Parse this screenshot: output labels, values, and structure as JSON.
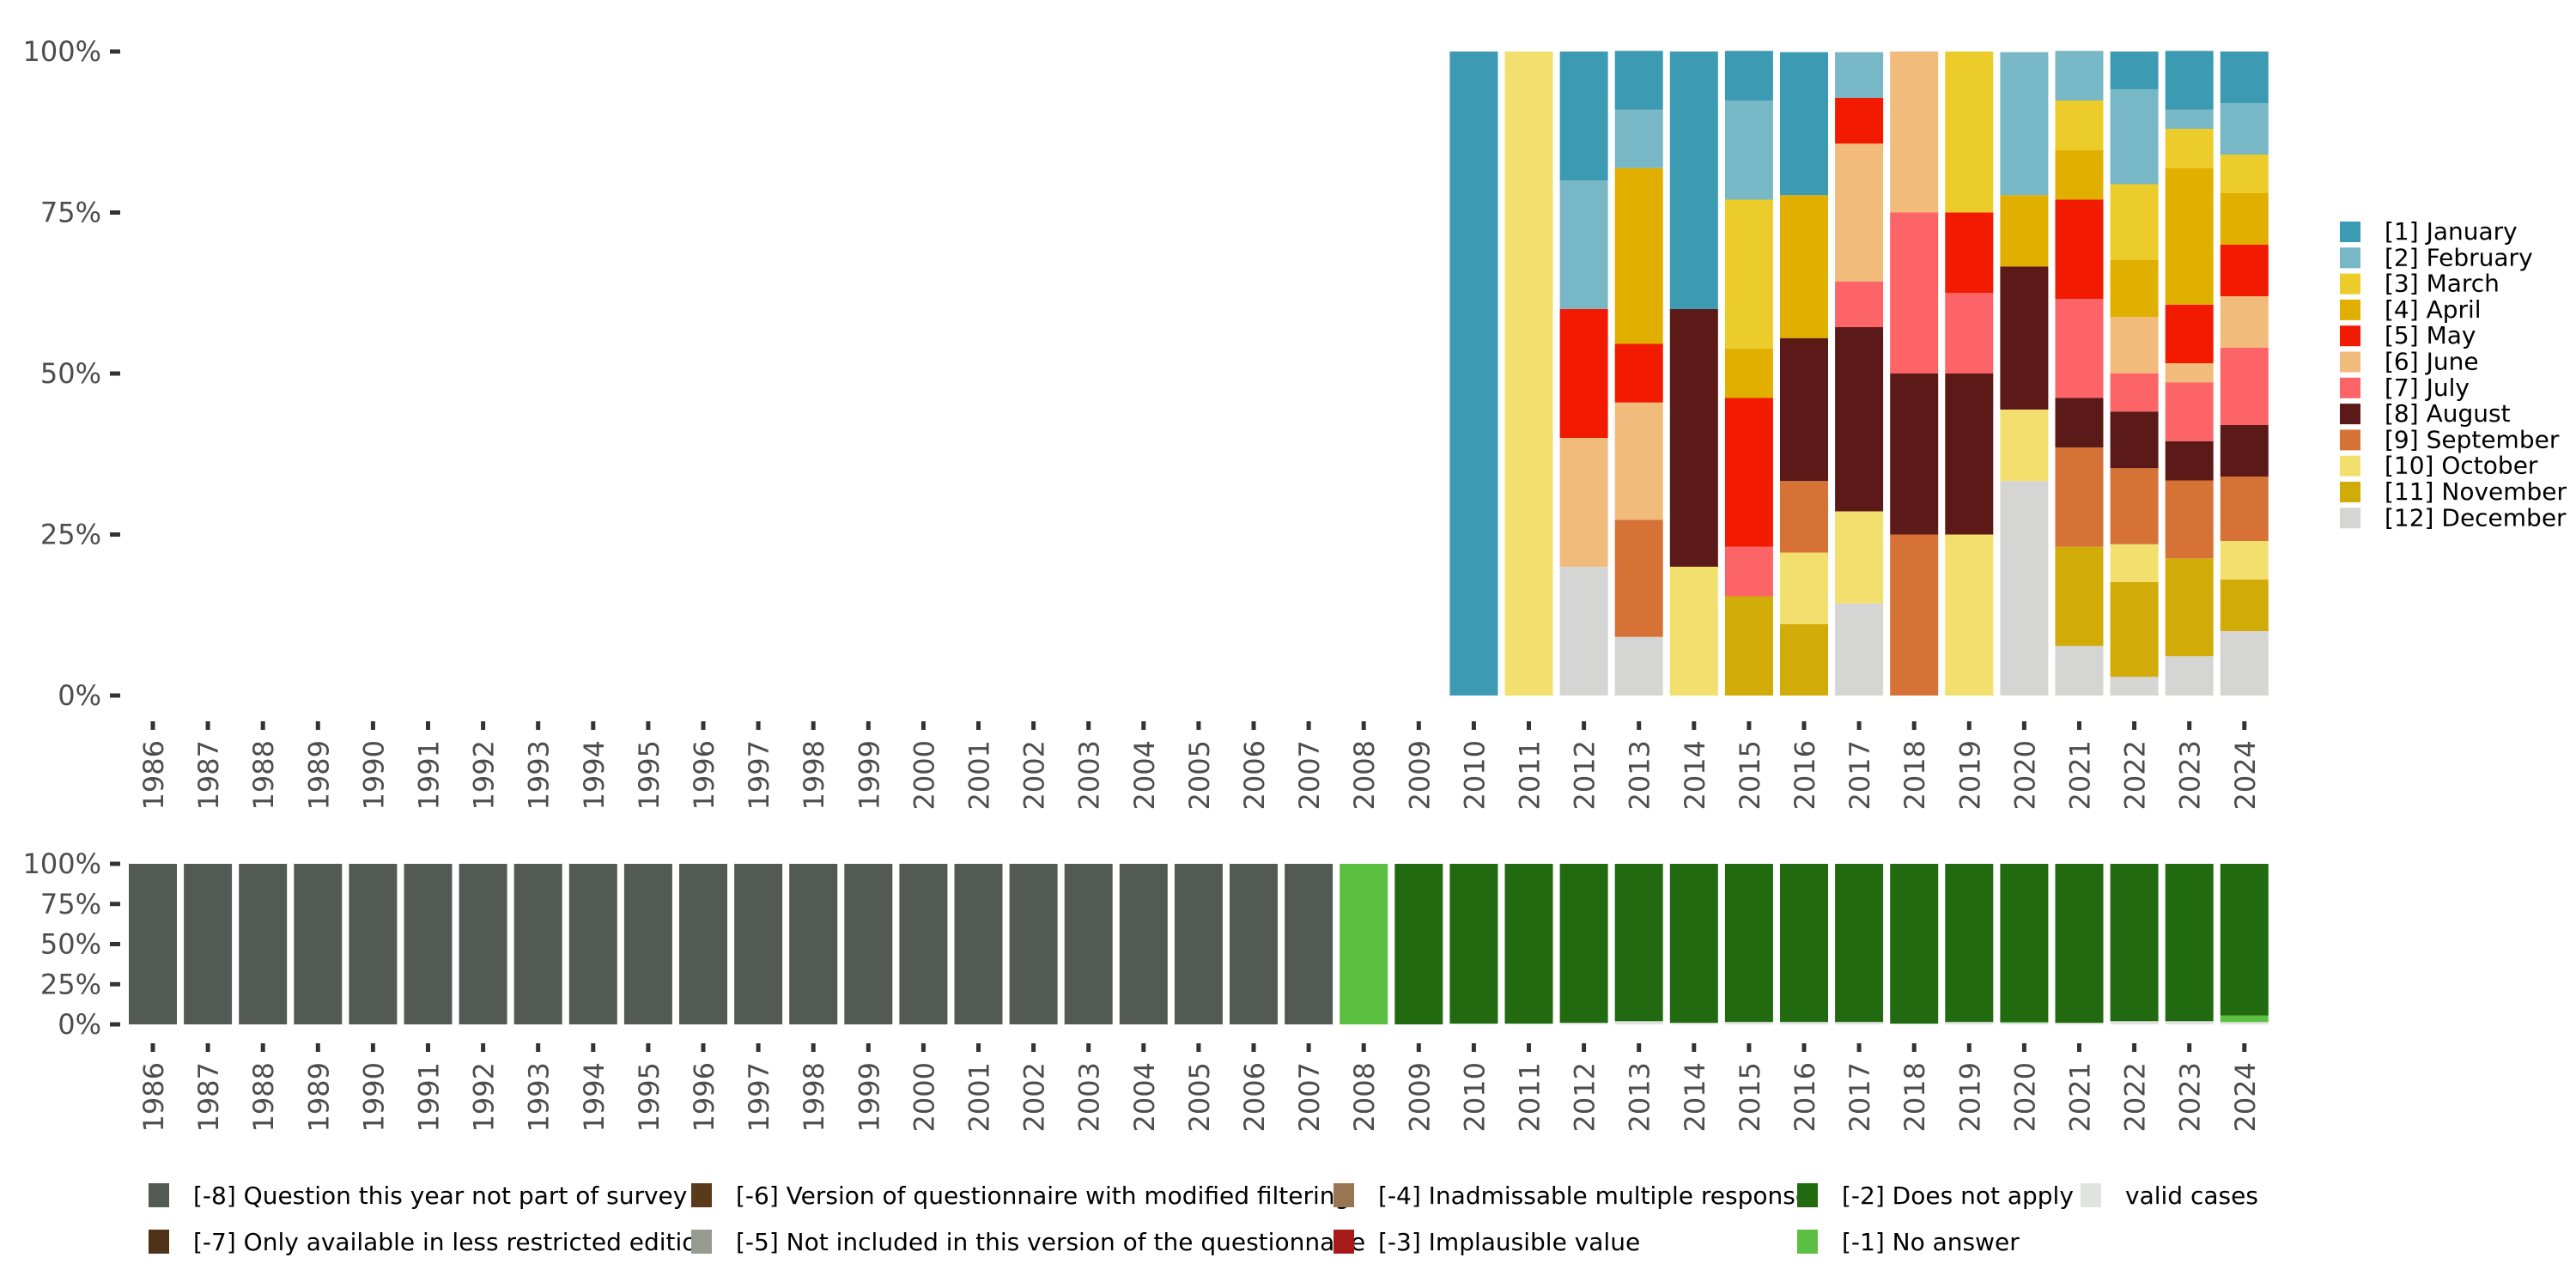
{
  "chart_data": [
    {
      "id": "top",
      "type": "bar",
      "stacked": true,
      "normalized": true,
      "title": "",
      "xlabel": "",
      "ylabel": "",
      "ylim": [
        0,
        100
      ],
      "yticks": [
        "0%",
        "25%",
        "50%",
        "75%",
        "100%"
      ],
      "grid": false,
      "legend_position": "right",
      "categories": [
        "1986",
        "1987",
        "1988",
        "1989",
        "1990",
        "1991",
        "1992",
        "1993",
        "1994",
        "1995",
        "1996",
        "1997",
        "1998",
        "1999",
        "2000",
        "2001",
        "2002",
        "2003",
        "2004",
        "2005",
        "2006",
        "2007",
        "2008",
        "2009",
        "2010",
        "2011",
        "2012",
        "2013",
        "2014",
        "2015",
        "2016",
        "2017",
        "2018",
        "2019",
        "2020",
        "2021",
        "2022",
        "2023",
        "2024"
      ],
      "series": [
        {
          "name": "[1] January",
          "color": "#3C9AB2",
          "values": [
            0,
            0,
            0,
            0,
            0,
            0,
            0,
            0,
            0,
            0,
            0,
            0,
            0,
            0,
            0,
            0,
            0,
            0,
            0,
            0,
            0,
            0,
            0,
            0,
            100,
            0,
            20,
            9.1,
            40,
            7.7,
            22.2,
            0,
            0,
            0,
            0,
            0,
            5.9,
            9.1,
            8
          ]
        },
        {
          "name": "[2] February",
          "color": "#78B7C5",
          "values": [
            0,
            0,
            0,
            0,
            0,
            0,
            0,
            0,
            0,
            0,
            0,
            0,
            0,
            0,
            0,
            0,
            0,
            0,
            0,
            0,
            0,
            0,
            0,
            0,
            0,
            0,
            20,
            9.1,
            0,
            15.4,
            0,
            7.1,
            0,
            0,
            22.2,
            7.7,
            14.7,
            3.0,
            8
          ]
        },
        {
          "name": "[3] March",
          "color": "#EBCC2A",
          "values": [
            0,
            0,
            0,
            0,
            0,
            0,
            0,
            0,
            0,
            0,
            0,
            0,
            0,
            0,
            0,
            0,
            0,
            0,
            0,
            0,
            0,
            0,
            0,
            0,
            0,
            0,
            0,
            0,
            0,
            23.1,
            0,
            0,
            0,
            25,
            0,
            7.7,
            11.8,
            6.1,
            6
          ]
        },
        {
          "name": "[4] April",
          "color": "#E1AF00",
          "values": [
            0,
            0,
            0,
            0,
            0,
            0,
            0,
            0,
            0,
            0,
            0,
            0,
            0,
            0,
            0,
            0,
            0,
            0,
            0,
            0,
            0,
            0,
            0,
            0,
            0,
            0,
            0,
            27.3,
            0,
            7.7,
            22.2,
            0,
            0,
            0,
            11.1,
            7.7,
            8.8,
            21.2,
            8
          ]
        },
        {
          "name": "[5] May",
          "color": "#F21A00",
          "values": [
            0,
            0,
            0,
            0,
            0,
            0,
            0,
            0,
            0,
            0,
            0,
            0,
            0,
            0,
            0,
            0,
            0,
            0,
            0,
            0,
            0,
            0,
            0,
            0,
            0,
            0,
            20,
            9.1,
            0,
            23.1,
            0,
            7.1,
            0,
            12.5,
            0,
            15.4,
            0,
            9.1,
            8
          ]
        },
        {
          "name": "[6] June",
          "color": "#F1BB7B",
          "values": [
            0,
            0,
            0,
            0,
            0,
            0,
            0,
            0,
            0,
            0,
            0,
            0,
            0,
            0,
            0,
            0,
            0,
            0,
            0,
            0,
            0,
            0,
            0,
            0,
            0,
            0,
            20,
            18.2,
            0,
            0,
            0,
            21.4,
            25,
            0,
            0,
            0,
            8.8,
            3.0,
            8
          ]
        },
        {
          "name": "[7] July",
          "color": "#FD6467",
          "values": [
            0,
            0,
            0,
            0,
            0,
            0,
            0,
            0,
            0,
            0,
            0,
            0,
            0,
            0,
            0,
            0,
            0,
            0,
            0,
            0,
            0,
            0,
            0,
            0,
            0,
            0,
            0,
            0,
            0,
            7.7,
            0,
            7.1,
            25,
            12.5,
            0,
            15.4,
            5.9,
            9.1,
            12
          ]
        },
        {
          "name": "[8] August",
          "color": "#5B1A18",
          "values": [
            0,
            0,
            0,
            0,
            0,
            0,
            0,
            0,
            0,
            0,
            0,
            0,
            0,
            0,
            0,
            0,
            0,
            0,
            0,
            0,
            0,
            0,
            0,
            0,
            0,
            0,
            0,
            0,
            40,
            0,
            22.2,
            28.6,
            25,
            25,
            22.2,
            7.7,
            8.8,
            6.1,
            8
          ]
        },
        {
          "name": "[9] September",
          "color": "#D67236",
          "values": [
            0,
            0,
            0,
            0,
            0,
            0,
            0,
            0,
            0,
            0,
            0,
            0,
            0,
            0,
            0,
            0,
            0,
            0,
            0,
            0,
            0,
            0,
            0,
            0,
            0,
            0,
            0,
            18.2,
            0,
            0,
            11.1,
            0,
            25,
            0,
            0,
            15.4,
            11.8,
            12.1,
            10
          ]
        },
        {
          "name": "[10] October",
          "color": "#F2DF6E",
          "values": [
            0,
            0,
            0,
            0,
            0,
            0,
            0,
            0,
            0,
            0,
            0,
            0,
            0,
            0,
            0,
            0,
            0,
            0,
            0,
            0,
            0,
            0,
            0,
            0,
            0,
            100,
            0,
            0,
            20,
            0,
            11.1,
            14.3,
            0,
            25,
            11.1,
            0,
            5.9,
            0,
            6
          ]
        },
        {
          "name": "[11] November",
          "color": "#D1AB08",
          "values": [
            0,
            0,
            0,
            0,
            0,
            0,
            0,
            0,
            0,
            0,
            0,
            0,
            0,
            0,
            0,
            0,
            0,
            0,
            0,
            0,
            0,
            0,
            0,
            0,
            0,
            0,
            0,
            0,
            0,
            15.4,
            11.1,
            0,
            0,
            0,
            0,
            15.4,
            14.7,
            15.2,
            8
          ]
        },
        {
          "name": "[12] December",
          "color": "#D5D5D3",
          "values": [
            0,
            0,
            0,
            0,
            0,
            0,
            0,
            0,
            0,
            0,
            0,
            0,
            0,
            0,
            0,
            0,
            0,
            0,
            0,
            0,
            0,
            0,
            0,
            0,
            0,
            0,
            20,
            9.1,
            0,
            0,
            0,
            14.3,
            0,
            0,
            33.3,
            7.7,
            2.9,
            6.1,
            10
          ]
        }
      ]
    },
    {
      "id": "bottom",
      "type": "bar",
      "stacked": true,
      "normalized": true,
      "title": "",
      "xlabel": "",
      "ylabel": "",
      "ylim": [
        0,
        100
      ],
      "yticks": [
        "0%",
        "25%",
        "50%",
        "75%",
        "100%"
      ],
      "grid": false,
      "legend_position": "bottom",
      "categories": [
        "1986",
        "1987",
        "1988",
        "1989",
        "1990",
        "1991",
        "1992",
        "1993",
        "1994",
        "1995",
        "1996",
        "1997",
        "1998",
        "1999",
        "2000",
        "2001",
        "2002",
        "2003",
        "2004",
        "2005",
        "2006",
        "2007",
        "2008",
        "2009",
        "2010",
        "2011",
        "2012",
        "2013",
        "2014",
        "2015",
        "2016",
        "2017",
        "2018",
        "2019",
        "2020",
        "2021",
        "2022",
        "2023",
        "2024"
      ],
      "series": [
        {
          "name": "[-8] Question this year not part of survey",
          "color": "#535A54",
          "values": [
            100,
            100,
            100,
            100,
            100,
            100,
            100,
            100,
            100,
            100,
            100,
            100,
            100,
            100,
            100,
            100,
            100,
            100,
            100,
            100,
            100,
            100,
            0,
            0,
            0,
            0,
            0,
            0,
            0,
            0,
            0,
            0,
            0,
            0,
            0,
            0,
            0,
            0,
            0
          ]
        },
        {
          "name": "[-7] Only available in less restricted edition",
          "color": "#4F3219",
          "values": [
            0,
            0,
            0,
            0,
            0,
            0,
            0,
            0,
            0,
            0,
            0,
            0,
            0,
            0,
            0,
            0,
            0,
            0,
            0,
            0,
            0,
            0,
            0,
            0,
            0,
            0,
            0,
            0,
            0,
            0,
            0,
            0,
            0,
            0,
            0,
            0,
            0,
            0,
            0
          ]
        },
        {
          "name": "[-6] Version of questionnaire with modified filtering",
          "color": "#5A3A1A",
          "values": [
            0,
            0,
            0,
            0,
            0,
            0,
            0,
            0,
            0,
            0,
            0,
            0,
            0,
            0,
            0,
            0,
            0,
            0,
            0,
            0,
            0,
            0,
            0,
            0,
            0,
            0,
            0,
            0,
            0,
            0,
            0,
            0,
            0,
            0,
            0,
            0,
            0,
            0,
            0
          ]
        },
        {
          "name": "[-5] Not included in this version of the questionnaire",
          "color": "#969B92",
          "values": [
            0,
            0,
            0,
            0,
            0,
            0,
            0,
            0,
            0,
            0,
            0,
            0,
            0,
            0,
            0,
            0,
            0,
            0,
            0,
            0,
            0,
            0,
            0,
            0,
            0,
            0,
            0,
            0,
            0,
            0,
            0,
            0,
            0,
            0,
            0,
            0,
            0,
            0,
            0
          ]
        },
        {
          "name": "[-4] Inadmissable multiple response",
          "color": "#9A7553",
          "values": [
            0,
            0,
            0,
            0,
            0,
            0,
            0,
            0,
            0,
            0,
            0,
            0,
            0,
            0,
            0,
            0,
            0,
            0,
            0,
            0,
            0,
            0,
            0,
            0,
            0,
            0,
            0,
            0,
            0,
            0,
            0,
            0,
            0,
            0,
            0,
            0,
            0,
            0,
            0
          ]
        },
        {
          "name": "[-3] Implausible value",
          "color": "#A8191A",
          "values": [
            0,
            0,
            0,
            0,
            0,
            0,
            0,
            0,
            0,
            0,
            0,
            0,
            0,
            0,
            0,
            0,
            0,
            0,
            0,
            0,
            0,
            0,
            0,
            0,
            0,
            0,
            0,
            0,
            0,
            0,
            0,
            0,
            0,
            0,
            0,
            0,
            0,
            0,
            0
          ]
        },
        {
          "name": "[-2] Does not apply",
          "color": "#216A10",
          "values": [
            0,
            0,
            0,
            0,
            0,
            0,
            0,
            0,
            0,
            0,
            0,
            0,
            0,
            0,
            0,
            0,
            0,
            0,
            0,
            0,
            0,
            0,
            0,
            100,
            99.5,
            99.5,
            99,
            98,
            99,
            98.5,
            98.5,
            98.5,
            99.5,
            98.5,
            98.5,
            99,
            98,
            98,
            94.5
          ]
        },
        {
          "name": "[-1] No answer",
          "color": "#5BC041",
          "values": [
            0,
            0,
            0,
            0,
            0,
            0,
            0,
            0,
            0,
            0,
            0,
            0,
            0,
            0,
            0,
            0,
            0,
            0,
            0,
            0,
            0,
            0,
            100,
            0,
            0,
            0,
            0,
            0,
            0,
            0,
            0,
            0,
            0,
            0,
            0.5,
            0,
            0,
            0,
            4
          ]
        },
        {
          "name": "valid cases",
          "color": "#E0E3DE",
          "values": [
            0,
            0,
            0,
            0,
            0,
            0,
            0,
            0,
            0,
            0,
            0,
            0,
            0,
            0,
            0,
            0,
            0,
            0,
            0,
            0,
            0,
            0,
            0,
            0,
            0.5,
            0.5,
            1,
            2,
            1,
            1.5,
            1.5,
            1.5,
            0.5,
            1.5,
            1,
            1,
            2,
            2,
            1.5
          ]
        }
      ],
      "legend_order": [
        "[-8] Question this year not part of survey",
        "[-7] Only available in less restricted edition",
        "[-6] Version of questionnaire with modified filtering",
        "[-5] Not included in this version of the questionnaire",
        "[-4] Inadmissable multiple response",
        "[-3] Implausible value",
        "[-2] Does not apply",
        "[-1] No answer",
        "valid cases"
      ]
    }
  ]
}
